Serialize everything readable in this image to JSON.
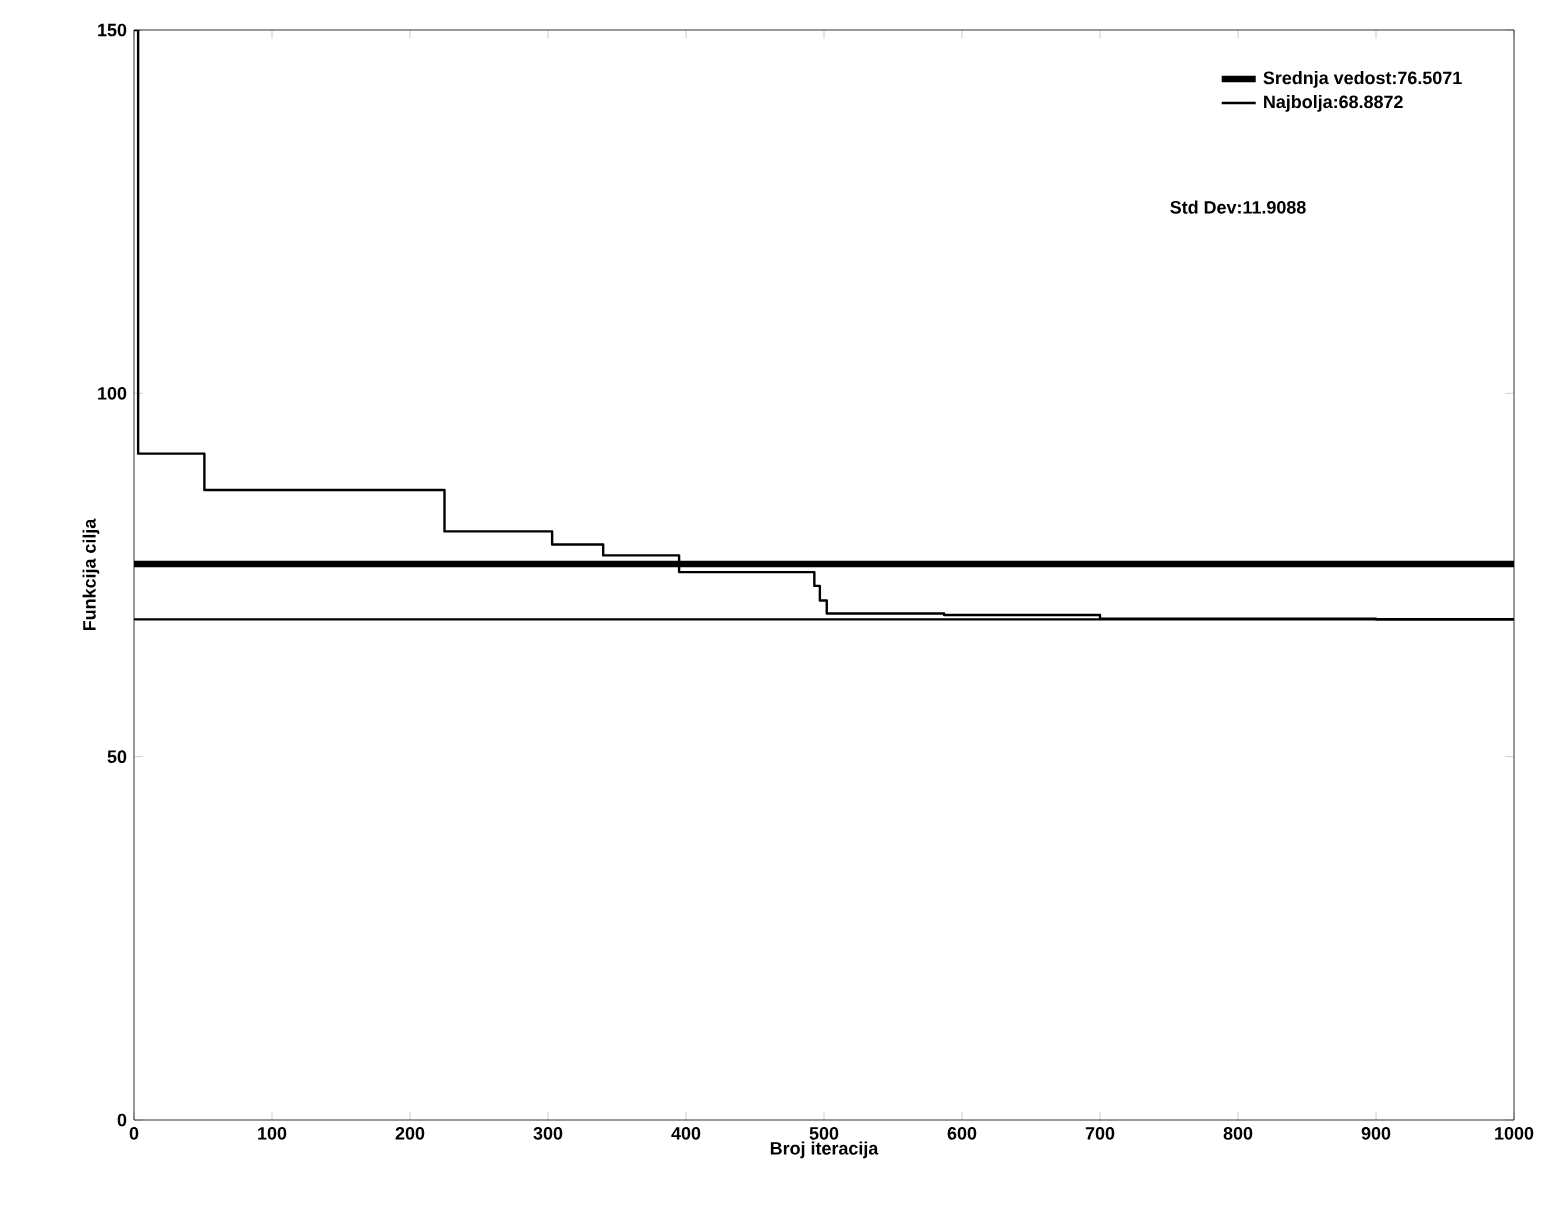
{
  "chart_data": {
    "type": "line",
    "xlabel": "Broj iteracija",
    "ylabel": "Funkcija cilja",
    "xlim": [
      0,
      1000
    ],
    "xticks": [
      0,
      100,
      200,
      300,
      400,
      500,
      600,
      700,
      800,
      900,
      1000
    ],
    "ylim": [
      0,
      150
    ],
    "yticks": [
      0,
      50,
      100,
      150
    ],
    "series": [
      {
        "name": "Srednja vedost:76.5071",
        "color": "#000000",
        "x": [
          0,
          1000
        ],
        "values": [
          76.5071,
          76.5071
        ]
      },
      {
        "name": "Najbolja:68.8872",
        "color": "#000000",
        "x": [
          0,
          1000
        ],
        "values": [
          68.8872,
          68.8872
        ]
      },
      {
        "type": "step",
        "color": "#000000",
        "x": [
          0,
          3,
          51,
          225,
          303,
          340,
          395,
          493,
          497,
          502,
          587,
          700,
          768,
          900,
          1000
        ],
        "values": [
          150,
          91.7,
          86.7,
          81.0,
          79.2,
          77.7,
          75.4,
          73.5,
          71.5,
          69.7,
          69.5,
          69.0,
          69.0,
          68.9,
          68.9
        ]
      }
    ],
    "annotations": [
      "Std Dev:11.9088"
    ],
    "legend": "top right",
    "grid": false,
    "marker": "none",
    "line_style": "solid"
  }
}
